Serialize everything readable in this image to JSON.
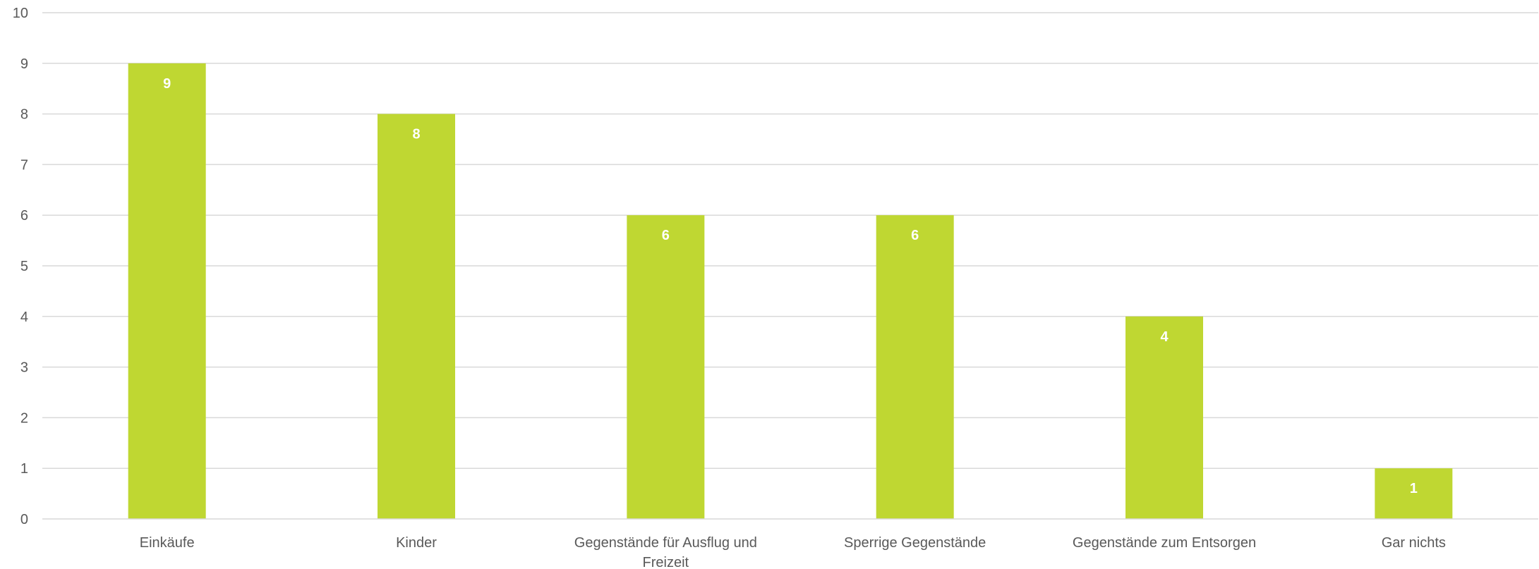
{
  "chart_data": {
    "type": "bar",
    "categories": [
      [
        "Einkäufe"
      ],
      [
        "Kinder"
      ],
      [
        "Gegenstände für Ausflug und",
        "Freizeit"
      ],
      [
        "Sperrige Gegenstände"
      ],
      [
        "Gegenstände zum Entsorgen"
      ],
      [
        "Gar nichts"
      ]
    ],
    "values": [
      9,
      8,
      6,
      6,
      4,
      1
    ],
    "data_labels": [
      "9",
      "8",
      "6",
      "6",
      "4",
      "1"
    ],
    "y_ticks": [
      "0",
      "1",
      "2",
      "3",
      "4",
      "5",
      "6",
      "7",
      "8",
      "9",
      "10"
    ],
    "ylim": [
      0,
      10
    ],
    "title": "",
    "xlabel": "",
    "ylabel": "",
    "grid": true,
    "legend": "none",
    "colors": {
      "bar": "#bfd732",
      "grid": "#d9d9d9",
      "text": "#595959",
      "data_label": "#ffffff"
    }
  }
}
